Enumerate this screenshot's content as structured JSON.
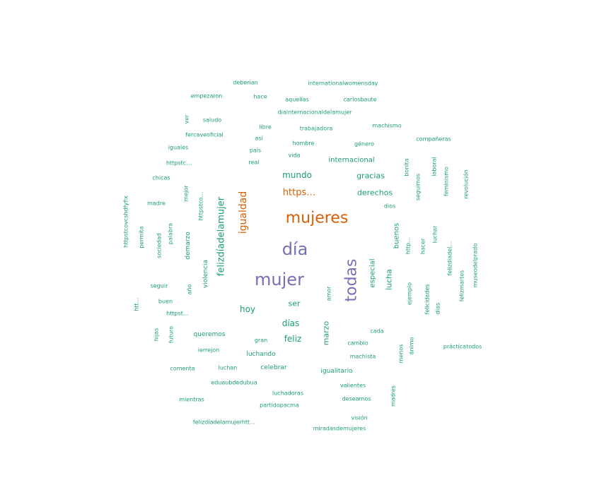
{
  "chart_data": {
    "type": "wordcloud",
    "title": "",
    "colors": {
      "top": "#d95f02",
      "high": "#7570b3",
      "base": "#1b9e77"
    },
    "words": [
      {
        "text": "mujeres",
        "color": "top"
      },
      {
        "text": "día",
        "color": "high"
      },
      {
        "text": "mujer",
        "color": "high"
      },
      {
        "text": "todas",
        "color": "high"
      },
      {
        "text": "igualdad",
        "color": "top"
      },
      {
        "text": "https…",
        "color": "top"
      },
      {
        "text": "felizdíadelamujer",
        "color": "base"
      },
      {
        "text": "mundo",
        "color": "base"
      },
      {
        "text": "gracias",
        "color": "base"
      },
      {
        "text": "derechos",
        "color": "base"
      },
      {
        "text": "hoy",
        "color": "base"
      },
      {
        "text": "días",
        "color": "base"
      },
      {
        "text": "feliz",
        "color": "base"
      },
      {
        "text": "marzo",
        "color": "base"
      },
      {
        "text": "ser",
        "color": "base"
      },
      {
        "text": "lucha",
        "color": "base"
      },
      {
        "text": "especial",
        "color": "base"
      },
      {
        "text": "buenos",
        "color": "base"
      },
      {
        "text": "internacional",
        "color": "base"
      },
      {
        "text": "deberian",
        "color": "base"
      },
      {
        "text": "internationalwomensday",
        "color": "base"
      },
      {
        "text": "empezaron",
        "color": "base"
      },
      {
        "text": "hace",
        "color": "base"
      },
      {
        "text": "aquellas",
        "color": "base"
      },
      {
        "text": "carlosbaute",
        "color": "base"
      },
      {
        "text": "diainternacionaldelamujer",
        "color": "base"
      },
      {
        "text": "ver",
        "color": "base"
      },
      {
        "text": "saludo",
        "color": "base"
      },
      {
        "text": "libre",
        "color": "base"
      },
      {
        "text": "trabajadora",
        "color": "base"
      },
      {
        "text": "machismo",
        "color": "base"
      },
      {
        "text": "fercaveoficial",
        "color": "base"
      },
      {
        "text": "así",
        "color": "base"
      },
      {
        "text": "hombre",
        "color": "base"
      },
      {
        "text": "género",
        "color": "base"
      },
      {
        "text": "compañeras",
        "color": "base"
      },
      {
        "text": "iguales",
        "color": "base"
      },
      {
        "text": "país",
        "color": "base"
      },
      {
        "text": "vida",
        "color": "base"
      },
      {
        "text": "httpstc…",
        "color": "base"
      },
      {
        "text": "real",
        "color": "base"
      },
      {
        "text": "bonita",
        "color": "base"
      },
      {
        "text": "laboral",
        "color": "base"
      },
      {
        "text": "chicas",
        "color": "base"
      },
      {
        "text": "seguimos",
        "color": "base"
      },
      {
        "text": "feminismo",
        "color": "base"
      },
      {
        "text": "revolución",
        "color": "base"
      },
      {
        "text": "mejor",
        "color": "base"
      },
      {
        "text": "httpstco…",
        "color": "base"
      },
      {
        "text": "madre",
        "color": "base"
      },
      {
        "text": "dios",
        "color": "base"
      },
      {
        "text": "httpstcovcshdfyfix",
        "color": "base"
      },
      {
        "text": "palabra",
        "color": "base"
      },
      {
        "text": "permita",
        "color": "base"
      },
      {
        "text": "sociedad",
        "color": "base"
      },
      {
        "text": "demarzo",
        "color": "base"
      },
      {
        "text": "luchan",
        "color": "base"
      },
      {
        "text": "http…",
        "color": "base"
      },
      {
        "text": "hacer",
        "color": "base"
      },
      {
        "text": "luchar",
        "color": "base"
      },
      {
        "text": "felizdiadel…",
        "color": "base"
      },
      {
        "text": "museodelprado",
        "color": "base"
      },
      {
        "text": "violencia",
        "color": "base"
      },
      {
        "text": "felizmartes",
        "color": "base"
      },
      {
        "text": "seguir",
        "color": "base"
      },
      {
        "text": "año",
        "color": "base"
      },
      {
        "text": "amor",
        "color": "base"
      },
      {
        "text": "ejemplo",
        "color": "base"
      },
      {
        "text": "felicidades",
        "color": "base"
      },
      {
        "text": "buen",
        "color": "base"
      },
      {
        "text": "htt…",
        "color": "base"
      },
      {
        "text": "httpst…",
        "color": "base"
      },
      {
        "text": "dias",
        "color": "base"
      },
      {
        "text": "hijas",
        "color": "base"
      },
      {
        "text": "futuro",
        "color": "base"
      },
      {
        "text": "queremos",
        "color": "base"
      },
      {
        "text": "cada",
        "color": "base"
      },
      {
        "text": "gran",
        "color": "base"
      },
      {
        "text": "cambio",
        "color": "base"
      },
      {
        "text": "ánimo",
        "color": "base"
      },
      {
        "text": "iglesias",
        "color": "base"
      },
      {
        "text": "menos",
        "color": "base"
      },
      {
        "text": "prácticatodos",
        "color": "base"
      },
      {
        "text": "ierrejon",
        "color": "base"
      },
      {
        "text": "luchando",
        "color": "base"
      },
      {
        "text": "machista",
        "color": "base"
      },
      {
        "text": "comenta",
        "color": "base"
      },
      {
        "text": "celebrar",
        "color": "base"
      },
      {
        "text": "igualitario",
        "color": "base"
      },
      {
        "text": "eduaubdedubua",
        "color": "base"
      },
      {
        "text": "valientes",
        "color": "base"
      },
      {
        "text": "mientras",
        "color": "base"
      },
      {
        "text": "luchadoras",
        "color": "base"
      },
      {
        "text": "deseamos",
        "color": "base"
      },
      {
        "text": "madres",
        "color": "base"
      },
      {
        "text": "partidopacma",
        "color": "base"
      },
      {
        "text": "visión",
        "color": "base"
      },
      {
        "text": "felizdíadelamujerhtt…",
        "color": "base"
      },
      {
        "text": "miradasdemujeres",
        "color": "base"
      }
    ]
  }
}
